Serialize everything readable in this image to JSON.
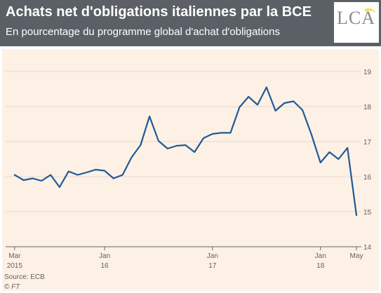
{
  "header": {
    "title": "Achats net d'obligations italiennes par la BCE",
    "subtitle": "En pourcentage du programme global d'achat d'obligations"
  },
  "logo": {
    "text": "LCA"
  },
  "footer": {
    "source": "Source: ECB",
    "credit": "© FT"
  },
  "colors": {
    "header_bg": "#5b6066",
    "plot_bg": "#fdf1e6",
    "line": "#1f5a96",
    "grid": "#e6d8cc"
  },
  "chart_data": {
    "type": "line",
    "title": "Achats net d'obligations italiennes par la BCE",
    "subtitle": "En pourcentage du programme global d'achat d'obligations",
    "xlabel": "",
    "ylabel": "",
    "ylim": [
      14,
      19
    ],
    "yticks": [
      14,
      15,
      16,
      17,
      18,
      19
    ],
    "y_axis_side": "right",
    "grid": true,
    "x_range": [
      "2015-02",
      "2018-05"
    ],
    "xtick_labels": [
      {
        "month": "2015-03",
        "line1": "Mar",
        "line2": "2015"
      },
      {
        "month": "2016-01",
        "line1": "Jan",
        "line2": "16"
      },
      {
        "month": "2017-01",
        "line1": "Jan",
        "line2": "17"
      },
      {
        "month": "2018-01",
        "line1": "Jan",
        "line2": "18"
      },
      {
        "month": "2018-05",
        "line1": "May",
        "line2": ""
      }
    ],
    "series": [
      {
        "x": [
          "2015-03",
          "2015-04",
          "2015-05",
          "2015-06",
          "2015-07",
          "2015-08",
          "2015-09",
          "2015-10",
          "2015-11",
          "2015-12",
          "2016-01",
          "2016-02",
          "2016-03",
          "2016-04",
          "2016-05",
          "2016-06",
          "2016-07",
          "2016-08",
          "2016-09",
          "2016-10",
          "2016-11",
          "2016-12",
          "2017-01",
          "2017-02",
          "2017-03",
          "2017-04",
          "2017-05",
          "2017-06",
          "2017-07",
          "2017-08",
          "2017-09",
          "2017-10",
          "2017-11",
          "2017-12",
          "2018-01",
          "2018-02",
          "2018-03",
          "2018-04",
          "2018-05"
        ],
        "values": [
          16.05,
          15.9,
          15.95,
          15.88,
          16.05,
          15.7,
          16.15,
          16.05,
          16.12,
          16.2,
          16.17,
          15.95,
          16.05,
          16.55,
          16.9,
          17.72,
          17.02,
          16.8,
          16.88,
          16.9,
          16.7,
          17.1,
          17.22,
          17.25,
          17.25,
          17.98,
          18.28,
          18.05,
          18.55,
          17.88,
          18.1,
          18.15,
          17.9,
          17.2,
          16.4,
          16.7,
          16.5,
          16.82,
          14.9
        ]
      }
    ]
  }
}
